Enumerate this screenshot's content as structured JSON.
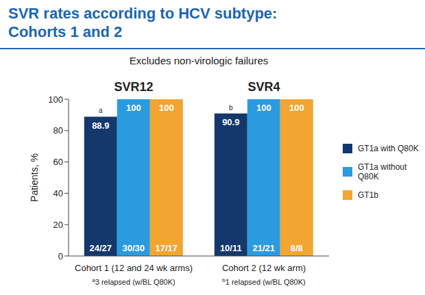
{
  "chart_data": {
    "type": "bar",
    "title": "SVR rates according to HCV subtype:\nCohorts 1 and 2",
    "subtitle": "Excludes non-virologic failures",
    "y_label": "Patients, %",
    "categories": [
      "Cohort 1 (12 and 24 wk arms)",
      "Cohort 2 (12 wk arm)"
    ],
    "group_labels": [
      "SVR12",
      "SVR4"
    ],
    "series": [
      {
        "name": "GT1a with Q80K",
        "color": "#14386b",
        "values": [
          88.9,
          90.9
        ],
        "fractions": [
          "24/27",
          "10/11"
        ]
      },
      {
        "name": "GT1a without Q80K",
        "color": "#2b9be0",
        "values": [
          100,
          100
        ],
        "fractions": [
          "30/30",
          "21/21"
        ]
      },
      {
        "name": "GT1b",
        "color": "#f2a531",
        "values": [
          100,
          100
        ],
        "fractions": [
          "17/17",
          "8/8"
        ]
      }
    ],
    "annotations": [
      {
        "mark": "a",
        "note": "3 relapsed (w/BL Q80K)"
      },
      {
        "mark": "b",
        "note": "1 relapsed (w/BL Q80K)"
      }
    ],
    "ylim": [
      0,
      100
    ],
    "yticks": [
      0,
      20,
      40,
      60,
      80,
      100
    ],
    "grid": false,
    "legend": "right",
    "data_labels": true
  }
}
